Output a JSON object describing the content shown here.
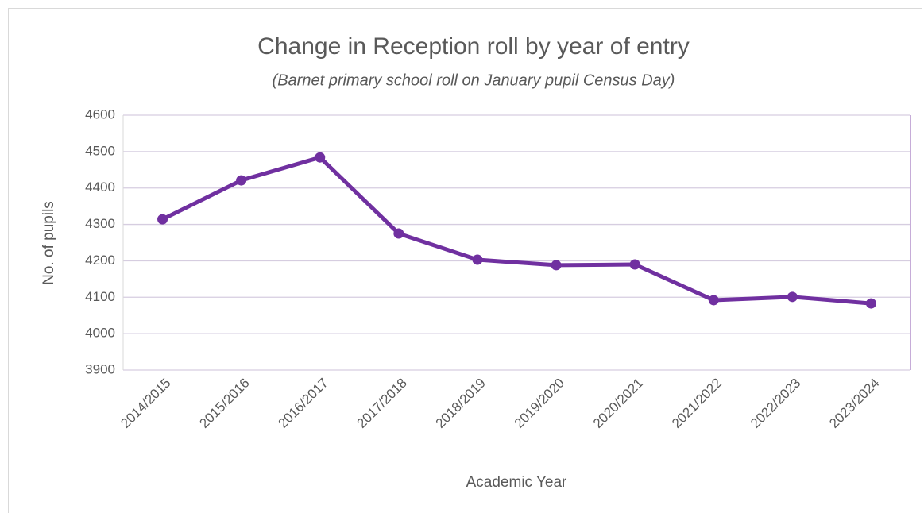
{
  "chart_data": {
    "type": "line",
    "title": "Change in Reception roll by year of entry",
    "subtitle": "(Barnet primary school roll on January pupil Census Day)",
    "x_label": "Academic Year",
    "y_label": "No. of pupils",
    "categories": [
      "2014/2015",
      "2015/2016",
      "2016/2017",
      "2017/2018",
      "2018/2019",
      "2019/2020",
      "2020/2021",
      "2021/2022",
      "2022/2023",
      "2023/2024"
    ],
    "series": [
      {
        "color": "#7030a0",
        "values": [
          4314,
          4421,
          4484,
          4275,
          4203,
          4188,
          4190,
          4092,
          4101,
          4083
        ]
      }
    ],
    "ylim": [
      3900,
      4600
    ],
    "yticks": [
      3900,
      4000,
      4100,
      4200,
      4300,
      4400,
      4500,
      4600
    ],
    "grid": true
  }
}
